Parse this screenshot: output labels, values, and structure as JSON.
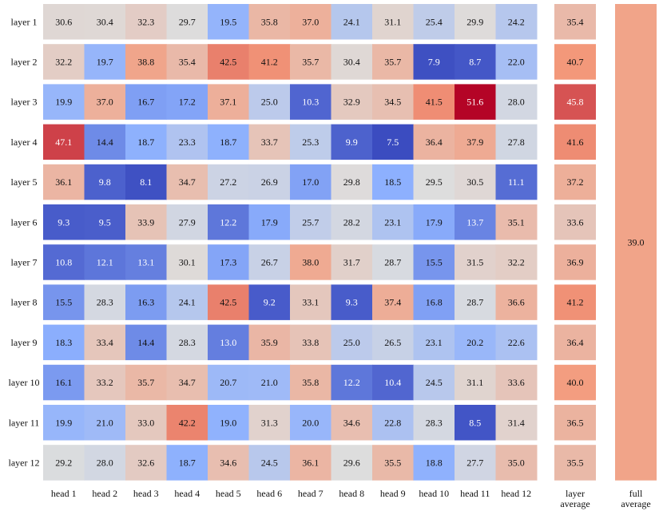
{
  "chart_data": {
    "type": "heatmap",
    "title": "",
    "rows": [
      "layer 1",
      "layer 2",
      "layer 3",
      "layer 4",
      "layer 5",
      "layer 6",
      "layer 7",
      "layer 8",
      "layer 9",
      "layer 10",
      "layer 11",
      "layer 12"
    ],
    "columns": [
      "head 1",
      "head 2",
      "head 3",
      "head 4",
      "head 5",
      "head 6",
      "head 7",
      "head 8",
      "head 9",
      "head 10",
      "head 11",
      "head 12"
    ],
    "values": [
      [
        30.6,
        30.4,
        32.3,
        29.7,
        19.5,
        35.8,
        37.0,
        24.1,
        31.1,
        25.4,
        29.9,
        24.2
      ],
      [
        32.2,
        19.7,
        38.8,
        35.4,
        42.5,
        41.2,
        35.7,
        30.4,
        35.7,
        7.9,
        8.7,
        22.0
      ],
      [
        19.9,
        37.0,
        16.7,
        17.2,
        37.1,
        25.0,
        10.3,
        32.9,
        34.5,
        41.5,
        51.6,
        28.0
      ],
      [
        47.1,
        14.4,
        18.7,
        23.3,
        18.7,
        33.7,
        25.3,
        9.9,
        7.5,
        36.4,
        37.9,
        27.8
      ],
      [
        36.1,
        9.8,
        8.1,
        34.7,
        27.2,
        26.9,
        17.0,
        29.8,
        18.5,
        29.5,
        30.5,
        11.1
      ],
      [
        9.3,
        9.5,
        33.9,
        27.9,
        12.2,
        17.9,
        25.7,
        28.2,
        23.1,
        17.9,
        13.7,
        35.1
      ],
      [
        10.8,
        12.1,
        13.1,
        30.1,
        17.3,
        26.7,
        38.0,
        31.7,
        28.7,
        15.5,
        31.5,
        32.2
      ],
      [
        15.5,
        28.3,
        16.3,
        24.1,
        42.5,
        9.2,
        33.1,
        9.3,
        37.4,
        16.8,
        28.7,
        36.6
      ],
      [
        18.3,
        33.4,
        14.4,
        28.3,
        13.0,
        35.9,
        33.8,
        25.0,
        26.5,
        23.1,
        20.2,
        22.6
      ],
      [
        16.1,
        33.2,
        35.7,
        34.7,
        20.7,
        21.0,
        35.8,
        12.2,
        10.4,
        24.5,
        31.1,
        33.6
      ],
      [
        19.9,
        21.0,
        33.0,
        42.2,
        19.0,
        31.3,
        20.0,
        34.6,
        22.8,
        28.3,
        8.5,
        31.4
      ],
      [
        29.2,
        28.0,
        32.6,
        18.7,
        34.6,
        24.5,
        36.1,
        29.6,
        35.5,
        18.8,
        27.7,
        35.0
      ]
    ],
    "layer_average": {
      "label": [
        "layer",
        "average"
      ],
      "values": [
        35.4,
        40.7,
        45.8,
        41.6,
        37.2,
        33.6,
        36.9,
        41.2,
        36.4,
        40.0,
        36.5,
        35.5
      ]
    },
    "full_average": {
      "label": [
        "full",
        "average"
      ],
      "value": 39.0
    },
    "colormap": "coolwarm",
    "color_range": [
      7.5,
      51.6
    ],
    "colors": {
      "low": "#3b4cc0",
      "mid": "#dddddd",
      "high": "#b40426"
    },
    "grid": false,
    "legend": "none"
  }
}
